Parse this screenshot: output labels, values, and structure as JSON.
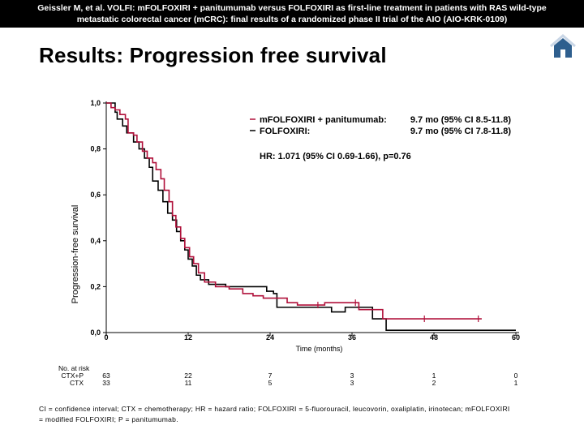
{
  "header": {
    "line1": "Geissler M, et al. VOLFI: mFOLFOXIRI + panitumumab versus FOLFOXIRI as first-line treatment in patients with RAS wild-type",
    "line2": "metastatic colorectal cancer (mCRC): final results of a randomized phase II trial of the AIO (AIO-KRK-0109)"
  },
  "slide_title": "Results: Progression free survival",
  "footnote": {
    "line1": "CI = confidence interval; CTX = chemotherapy; HR = hazard ratio; FOLFOXIRI = 5-fluorouracil, leucovorin, oxaliplatin, irinotecan; mFOLFOXIRI",
    "line2": "= modified FOLFOXIRI; P = panitumumab."
  },
  "chart_data": {
    "type": "line",
    "title": "Results: Progression free survival",
    "xlabel": "Time (months)",
    "ylabel": "Progression-free survival",
    "xlim": [
      0,
      60
    ],
    "ylim": [
      0,
      1
    ],
    "x_ticks": [
      "0",
      "12",
      "24",
      "36",
      "48",
      "60"
    ],
    "y_ticks": [
      "0,0",
      "0,2",
      "0,4",
      "0,6",
      "0,8",
      "1,0"
    ],
    "legend": {
      "position": "top-right",
      "entries": [
        {
          "name": "mFOLFOXIRI + panitumumab:",
          "value": "9.7 mo (95% CI 8.5-11.8)",
          "color": "#b0103a"
        },
        {
          "name": "FOLFOXIRI:",
          "value": "9.7 mo (95% CI 7.8-11.8)",
          "color": "#000000"
        }
      ]
    },
    "annotation": "HR: 1.071 (95% CI 0.69-1.66), p=0.76",
    "series": [
      {
        "name": "CTX+P",
        "color": "#b0103a",
        "points": [
          [
            0,
            1.0
          ],
          [
            0.7,
            0.98
          ],
          [
            1.3,
            0.97
          ],
          [
            2,
            0.95
          ],
          [
            2.8,
            0.93
          ],
          [
            3.2,
            0.87
          ],
          [
            4,
            0.86
          ],
          [
            4.5,
            0.83
          ],
          [
            5.3,
            0.79
          ],
          [
            6,
            0.76
          ],
          [
            6.8,
            0.74
          ],
          [
            7.3,
            0.71
          ],
          [
            8,
            0.67
          ],
          [
            8.5,
            0.62
          ],
          [
            9.2,
            0.57
          ],
          [
            9.7,
            0.51
          ],
          [
            10.2,
            0.46
          ],
          [
            10.9,
            0.41
          ],
          [
            11.5,
            0.37
          ],
          [
            12.2,
            0.33
          ],
          [
            12.8,
            0.3
          ],
          [
            13.5,
            0.26
          ],
          [
            14.4,
            0.22
          ],
          [
            16,
            0.2
          ],
          [
            18,
            0.19
          ],
          [
            20,
            0.17
          ],
          [
            21.5,
            0.16
          ],
          [
            23,
            0.15
          ],
          [
            26.5,
            0.13
          ],
          [
            28,
            0.12
          ],
          [
            30.5,
            0.12
          ],
          [
            32,
            0.13
          ],
          [
            36,
            0.13
          ],
          [
            37,
            0.1
          ],
          [
            39.5,
            0.1
          ],
          [
            40.5,
            0.06
          ],
          [
            46.6,
            0.06
          ],
          [
            55,
            0.06
          ]
        ],
        "censor_marks": [
          [
            31,
            0.12
          ],
          [
            36.5,
            0.13
          ],
          [
            46.6,
            0.06
          ],
          [
            54.5,
            0.06
          ]
        ]
      },
      {
        "name": "CTX",
        "color": "#000000",
        "points": [
          [
            0,
            1.0
          ],
          [
            1.3,
            0.96
          ],
          [
            1.6,
            0.93
          ],
          [
            2.4,
            0.9
          ],
          [
            3,
            0.87
          ],
          [
            4,
            0.83
          ],
          [
            4.8,
            0.8
          ],
          [
            5.6,
            0.76
          ],
          [
            6.3,
            0.72
          ],
          [
            6.8,
            0.66
          ],
          [
            7.6,
            0.62
          ],
          [
            8.3,
            0.57
          ],
          [
            9,
            0.52
          ],
          [
            9.7,
            0.49
          ],
          [
            10.3,
            0.44
          ],
          [
            10.9,
            0.4
          ],
          [
            11.5,
            0.36
          ],
          [
            12,
            0.32
          ],
          [
            12.6,
            0.29
          ],
          [
            13.2,
            0.25
          ],
          [
            13.8,
            0.23
          ],
          [
            15,
            0.21
          ],
          [
            16.5,
            0.21
          ],
          [
            17.5,
            0.2
          ],
          [
            22.5,
            0.2
          ],
          [
            23.5,
            0.18
          ],
          [
            24.5,
            0.17
          ],
          [
            25,
            0.11
          ],
          [
            32,
            0.11
          ],
          [
            33,
            0.09
          ],
          [
            34,
            0.09
          ],
          [
            35,
            0.11
          ],
          [
            38,
            0.11
          ],
          [
            39,
            0.06
          ],
          [
            40.5,
            0.06
          ],
          [
            41,
            0.01
          ],
          [
            60,
            0.01
          ]
        ],
        "censor_marks": []
      }
    ],
    "at_risk": {
      "title": "No. at risk",
      "rows": [
        {
          "label": "CTX+P",
          "values": [
            "63",
            "22",
            "7",
            "3",
            "1",
            "0"
          ]
        },
        {
          "label": "CTX",
          "values": [
            "33",
            "11",
            "5",
            "3",
            "2",
            "1"
          ]
        }
      ]
    }
  }
}
